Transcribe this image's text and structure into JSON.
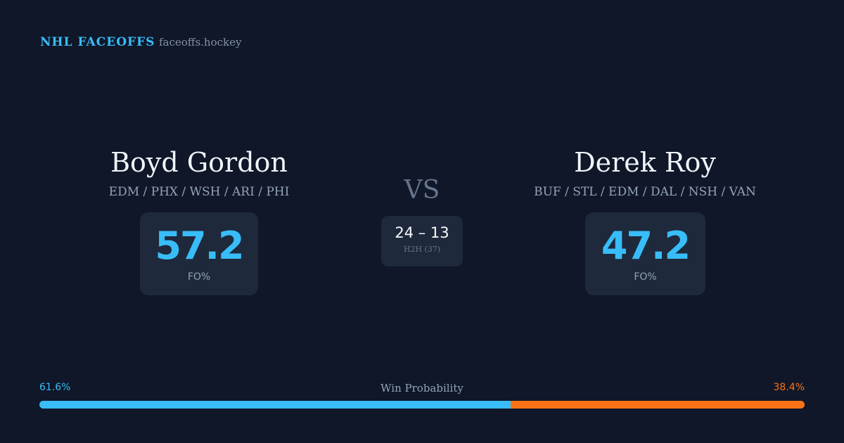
{
  "header": {
    "brand": "NHL FACEOFFS",
    "site": "faceoffs.hockey"
  },
  "vs": "VS",
  "players": [
    {
      "name": "Boyd Gordon",
      "teams": "EDM / PHX / WSH / ARI / PHI",
      "stat": 57.2,
      "stat_label": "FO%"
    },
    {
      "name": "Derek Roy",
      "teams": "BUF / STL / EDM / DAL / NSH / VAN",
      "stat": 47.2,
      "stat_label": "FO%"
    }
  ],
  "h2h": {
    "record": "24 – 13",
    "label": "H2H (37)"
  },
  "win_probability": {
    "title": "Win Probability",
    "left": {
      "value": 61.6,
      "label": "61.6%"
    },
    "right": {
      "value": 38.4,
      "label": "38.4%"
    }
  }
}
